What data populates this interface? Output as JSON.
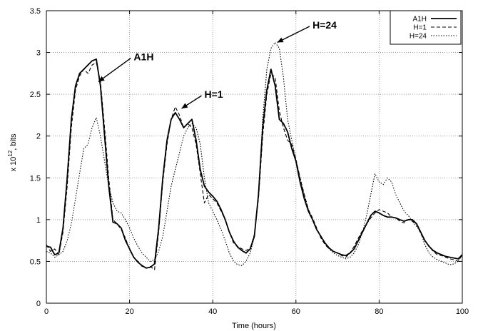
{
  "chart_data": {
    "type": "line",
    "xlabel": "Time (hours)",
    "ylabel_prefix": "x 10",
    "ylabel_exponent": "12",
    "ylabel_suffix": ", bits",
    "xlim": [
      0,
      100
    ],
    "ylim": [
      0,
      3.5
    ],
    "x_ticks": [
      "0",
      "20",
      "40",
      "60",
      "80",
      "100"
    ],
    "y_ticks": [
      "0",
      "0.5",
      "1",
      "1.5",
      "2",
      "2.5",
      "3",
      "3.5"
    ],
    "grid": true,
    "legend_position": "top-right",
    "series": [
      {
        "name": "A1H",
        "style": "solid",
        "x": [
          0,
          1,
          2,
          3,
          4,
          5,
          6,
          7,
          8,
          9,
          10,
          11,
          12,
          13,
          14,
          15,
          16,
          17,
          18,
          19,
          20,
          21,
          22,
          23,
          24,
          25,
          26,
          27,
          28,
          29,
          30,
          31,
          32,
          33,
          34,
          35,
          36,
          37,
          38,
          39,
          40,
          41,
          42,
          43,
          44,
          45,
          46,
          47,
          48,
          49,
          50,
          51,
          52,
          53,
          54,
          55,
          56,
          57,
          58,
          59,
          60,
          61,
          62,
          63,
          64,
          65,
          66,
          67,
          68,
          69,
          70,
          71,
          72,
          73,
          74,
          75,
          76,
          77,
          78,
          79,
          80,
          81,
          82,
          83,
          84,
          85,
          86,
          87,
          88,
          89,
          90,
          91,
          92,
          93,
          94,
          95,
          96,
          97,
          98,
          99,
          100
        ],
        "y": [
          0.68,
          0.67,
          0.58,
          0.6,
          0.9,
          1.5,
          2.2,
          2.6,
          2.75,
          2.8,
          2.85,
          2.9,
          2.92,
          2.6,
          2.0,
          1.4,
          0.97,
          0.95,
          0.9,
          0.75,
          0.65,
          0.55,
          0.49,
          0.45,
          0.42,
          0.43,
          0.47,
          0.9,
          1.5,
          1.95,
          2.2,
          2.28,
          2.2,
          2.1,
          2.15,
          2.2,
          1.95,
          1.6,
          1.4,
          1.33,
          1.28,
          1.22,
          1.12,
          1.0,
          0.85,
          0.74,
          0.67,
          0.63,
          0.6,
          0.65,
          0.8,
          1.3,
          2.1,
          2.55,
          2.8,
          2.6,
          2.2,
          2.15,
          2.05,
          1.85,
          1.7,
          1.45,
          1.25,
          1.1,
          1.0,
          0.88,
          0.8,
          0.72,
          0.66,
          0.62,
          0.6,
          0.58,
          0.57,
          0.6,
          0.65,
          0.75,
          0.85,
          0.95,
          1.05,
          1.1,
          1.08,
          1.05,
          1.03,
          1.03,
          1.02,
          1.0,
          0.98,
          1.0,
          1.0,
          0.95,
          0.85,
          0.75,
          0.68,
          0.63,
          0.6,
          0.58,
          0.56,
          0.55,
          0.54,
          0.53,
          0.58
        ]
      },
      {
        "name": "H=1",
        "style": "dashed",
        "x": [
          0,
          1,
          2,
          3,
          4,
          5,
          6,
          7,
          8,
          9,
          10,
          11,
          12,
          13,
          14,
          15,
          16,
          17,
          18,
          19,
          20,
          21,
          22,
          23,
          24,
          25,
          26,
          27,
          28,
          29,
          30,
          31,
          32,
          33,
          34,
          35,
          36,
          37,
          38,
          39,
          40,
          41,
          42,
          43,
          44,
          45,
          46,
          47,
          48,
          49,
          50,
          51,
          52,
          53,
          54,
          55,
          56,
          57,
          58,
          59,
          60,
          61,
          62,
          63,
          64,
          65,
          66,
          67,
          68,
          69,
          70,
          71,
          72,
          73,
          74,
          75,
          76,
          77,
          78,
          79,
          80,
          81,
          82,
          83,
          84,
          85,
          86,
          87,
          88,
          89,
          90,
          91,
          92,
          93,
          94,
          95,
          96,
          97,
          98,
          99,
          100
        ],
        "y": [
          0.7,
          0.62,
          0.65,
          0.58,
          0.85,
          1.4,
          2.1,
          2.55,
          2.72,
          2.8,
          2.75,
          2.85,
          2.88,
          2.65,
          2.1,
          1.5,
          1.0,
          0.95,
          0.88,
          0.78,
          0.64,
          0.55,
          0.5,
          0.44,
          0.42,
          0.44,
          0.4,
          0.85,
          1.45,
          1.9,
          2.2,
          2.35,
          2.25,
          2.1,
          2.15,
          2.1,
          1.9,
          1.55,
          1.2,
          1.3,
          1.25,
          1.2,
          1.1,
          1.0,
          0.85,
          0.72,
          0.68,
          0.65,
          0.63,
          0.66,
          0.82,
          1.25,
          2.0,
          2.5,
          2.75,
          2.7,
          2.3,
          2.1,
          1.95,
          1.9,
          1.72,
          1.5,
          1.3,
          1.12,
          1.02,
          0.9,
          0.78,
          0.7,
          0.65,
          0.62,
          0.6,
          0.57,
          0.55,
          0.6,
          0.68,
          0.78,
          0.87,
          0.95,
          1.02,
          1.08,
          1.12,
          1.1,
          1.08,
          1.03,
          1.02,
          0.98,
          0.96,
          1.0,
          0.98,
          0.95,
          0.83,
          0.75,
          0.68,
          0.62,
          0.58,
          0.57,
          0.55,
          0.53,
          0.52,
          0.5,
          0.58
        ]
      },
      {
        "name": "H=24",
        "style": "dotted",
        "x": [
          0,
          1,
          2,
          3,
          4,
          5,
          6,
          7,
          8,
          9,
          10,
          11,
          12,
          13,
          14,
          15,
          16,
          17,
          18,
          19,
          20,
          21,
          22,
          23,
          24,
          25,
          26,
          27,
          28,
          29,
          30,
          31,
          32,
          33,
          34,
          35,
          36,
          37,
          38,
          39,
          40,
          41,
          42,
          43,
          44,
          45,
          46,
          47,
          48,
          49,
          50,
          51,
          52,
          53,
          54,
          55,
          56,
          57,
          58,
          59,
          60,
          61,
          62,
          63,
          64,
          65,
          66,
          67,
          68,
          69,
          70,
          71,
          72,
          73,
          74,
          75,
          76,
          77,
          78,
          79,
          80,
          81,
          82,
          83,
          84,
          85,
          86,
          87,
          88,
          89,
          90,
          91,
          92,
          93,
          94,
          95,
          96,
          97,
          98,
          99,
          100
        ],
        "y": [
          0.62,
          0.6,
          0.55,
          0.58,
          0.62,
          0.75,
          0.95,
          1.25,
          1.55,
          1.85,
          1.9,
          2.1,
          2.22,
          2.0,
          1.7,
          1.4,
          1.2,
          1.1,
          1.08,
          1.0,
          0.9,
          0.78,
          0.68,
          0.6,
          0.55,
          0.5,
          0.52,
          0.62,
          0.8,
          1.1,
          1.4,
          1.6,
          1.8,
          2.0,
          2.1,
          2.15,
          2.1,
          1.9,
          1.5,
          1.2,
          1.1,
          1.0,
          0.88,
          0.75,
          0.6,
          0.5,
          0.46,
          0.45,
          0.5,
          0.6,
          0.8,
          1.3,
          2.2,
          2.8,
          3.05,
          3.12,
          3.05,
          2.7,
          2.2,
          1.95,
          1.72,
          1.5,
          1.3,
          1.12,
          1.0,
          0.88,
          0.8,
          0.72,
          0.65,
          0.6,
          0.57,
          0.55,
          0.53,
          0.55,
          0.6,
          0.7,
          0.85,
          1.05,
          1.3,
          1.55,
          1.45,
          1.42,
          1.5,
          1.45,
          1.3,
          1.2,
          1.1,
          1.05,
          0.98,
          0.92,
          0.85,
          0.7,
          0.6,
          0.55,
          0.52,
          0.5,
          0.48,
          0.46,
          0.47,
          0.5,
          0.6
        ]
      }
    ],
    "annotations": [
      {
        "text": "A1H",
        "target_x": 12.5,
        "target_y": 2.65,
        "text_x": 21,
        "text_y": 2.95
      },
      {
        "text": "H=1",
        "target_x": 32.5,
        "target_y": 2.33,
        "text_x": 38,
        "text_y": 2.5
      },
      {
        "text": "H=24",
        "target_x": 55.5,
        "target_y": 3.12,
        "text_x": 64,
        "text_y": 3.33
      }
    ]
  }
}
